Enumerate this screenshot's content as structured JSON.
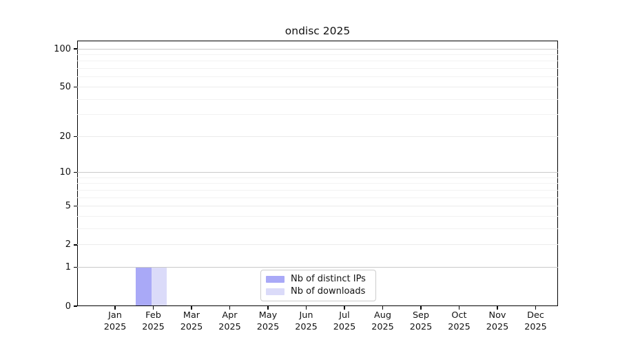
{
  "title": "ondisc 2025",
  "chart_data": {
    "type": "bar",
    "title": "ondisc 2025",
    "categories": [
      "Jan",
      "Feb",
      "Mar",
      "Apr",
      "May",
      "Jun",
      "Jul",
      "Aug",
      "Sep",
      "Oct",
      "Nov",
      "Dec"
    ],
    "year_label": "2025",
    "series": [
      {
        "name": "Nb of distinct IPs",
        "color": "#a9a9f7",
        "values": [
          0,
          1,
          0,
          0,
          0,
          0,
          0,
          0,
          0,
          0,
          0,
          0
        ]
      },
      {
        "name": "Nb of downloads",
        "color": "#dbdbf9",
        "values": [
          0,
          1,
          0,
          0,
          0,
          0,
          0,
          0,
          0,
          0,
          0,
          0
        ]
      }
    ],
    "yscale": "log1p",
    "ylim": [
      0,
      116
    ],
    "yticks": [
      0,
      1,
      2,
      5,
      10,
      20,
      50,
      100
    ],
    "yticks_major_decades": [
      1,
      10,
      100
    ],
    "yticks_minor": [
      3,
      4,
      6,
      7,
      8,
      9,
      30,
      40,
      60,
      70,
      80,
      90
    ],
    "xlabel": "",
    "ylabel": "",
    "grid": "horizontal",
    "legend_position": "lower center"
  },
  "colors": {
    "bar_distinct_ips": "#a9a9f7",
    "bar_downloads": "#dbdbf9",
    "grid_major": "#c9c9c9",
    "grid_minor": "#f2f2f2",
    "spine": "#000000",
    "text": "#111111",
    "legend_border": "#cccccc"
  }
}
